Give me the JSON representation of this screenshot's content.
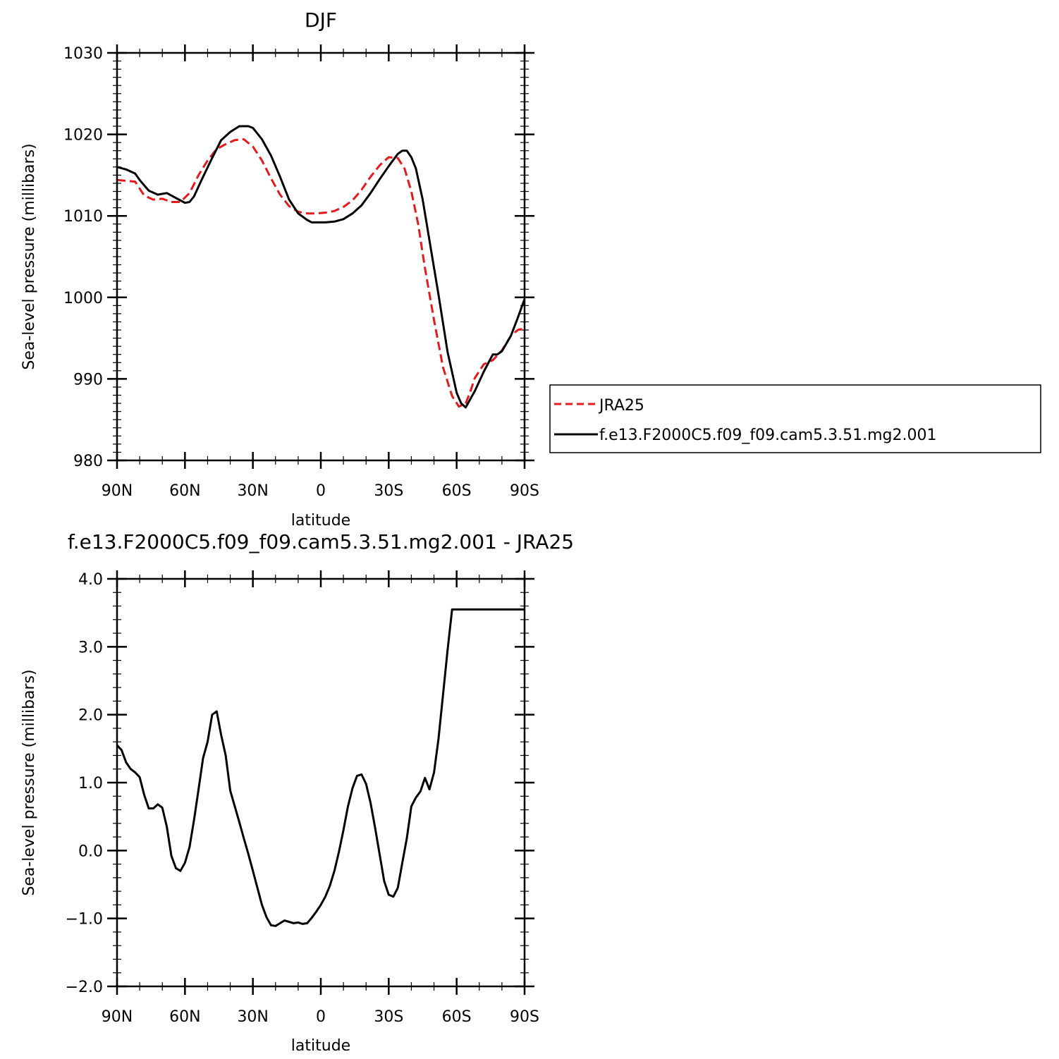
{
  "chart_data": [
    {
      "type": "line",
      "title": "DJF",
      "xlabel": "latitude",
      "ylabel": "Sea-level pressure (millibars)",
      "xlim": [
        -90,
        90
      ],
      "ylim": [
        980,
        1030
      ],
      "x_ticks": [
        {
          "value": -90,
          "label": "90N"
        },
        {
          "value": -60,
          "label": "60N"
        },
        {
          "value": -30,
          "label": "30N"
        },
        {
          "value": 0,
          "label": "0"
        },
        {
          "value": 30,
          "label": "30S"
        },
        {
          "value": 60,
          "label": "60S"
        },
        {
          "value": 90,
          "label": "90S"
        }
      ],
      "y_ticks": [
        {
          "value": 980,
          "label": "980"
        },
        {
          "value": 990,
          "label": "990"
        },
        {
          "value": 1000,
          "label": "1000"
        },
        {
          "value": 1010,
          "label": "1010"
        },
        {
          "value": 1020,
          "label": "1020"
        },
        {
          "value": 1030,
          "label": "1030"
        }
      ],
      "legend_position": "right",
      "series": [
        {
          "name": "JRA25",
          "color": "#e41a1c",
          "dash": "dashed",
          "x": [
            -90,
            -82,
            -78,
            -74,
            -70,
            -66,
            -62,
            -58,
            -54,
            -50,
            -46,
            -42,
            -38,
            -34,
            -30,
            -26,
            -22,
            -18,
            -14,
            -10,
            -6,
            -2,
            2,
            6,
            10,
            14,
            18,
            22,
            26,
            30,
            34,
            37,
            40,
            43,
            46,
            50,
            54,
            58,
            61,
            64,
            66,
            68,
            72,
            76,
            80,
            84,
            87,
            90
          ],
          "y": [
            1014.4,
            1014.2,
            1012.5,
            1012.0,
            1012.1,
            1011.7,
            1011.7,
            1012.8,
            1015.0,
            1016.8,
            1018.2,
            1018.8,
            1019.3,
            1019.4,
            1018.5,
            1016.8,
            1014.6,
            1012.6,
            1011.2,
            1010.5,
            1010.3,
            1010.3,
            1010.4,
            1010.6,
            1011.1,
            1011.9,
            1013.2,
            1014.8,
            1016.2,
            1017.2,
            1017.1,
            1015.8,
            1013.0,
            1009.0,
            1003.6,
            997.2,
            991.4,
            987.9,
            986.6,
            987.0,
            988.4,
            990.1,
            991.8,
            992.3,
            993.5,
            995.3,
            996.0,
            996.2
          ]
        },
        {
          "name": "f.e13.F2000C5.f09_f09.cam5.3.51.mg2.001",
          "color": "#000000",
          "dash": "solid",
          "x": [
            -90,
            -86,
            -82,
            -80,
            -76,
            -72,
            -68,
            -64,
            -60,
            -58,
            -56,
            -52,
            -48,
            -44,
            -40,
            -36,
            -34,
            -32,
            -30,
            -26,
            -22,
            -18,
            -14,
            -10,
            -6,
            -4,
            -2,
            2,
            6,
            10,
            14,
            18,
            22,
            26,
            30,
            34,
            36,
            38,
            40,
            42,
            45,
            48,
            52,
            56,
            60,
            62,
            64,
            66,
            68,
            72,
            76,
            78,
            80,
            84,
            87,
            90
          ],
          "y": [
            1016.0,
            1015.7,
            1015.2,
            1014.4,
            1013.1,
            1012.6,
            1012.8,
            1012.2,
            1011.6,
            1011.7,
            1012.4,
            1014.8,
            1017.1,
            1019.3,
            1020.3,
            1021.0,
            1021.0,
            1021.0,
            1020.8,
            1019.4,
            1017.4,
            1014.8,
            1012.0,
            1010.3,
            1009.5,
            1009.2,
            1009.2,
            1009.2,
            1009.3,
            1009.6,
            1010.3,
            1011.3,
            1012.8,
            1014.5,
            1016.1,
            1017.6,
            1018.0,
            1018.0,
            1017.2,
            1015.8,
            1012.0,
            1007.0,
            1000.3,
            993.3,
            988.3,
            987.0,
            986.5,
            987.5,
            988.5,
            990.9,
            993.0,
            993.0,
            993.4,
            995.3,
            997.5,
            999.8
          ]
        }
      ]
    },
    {
      "type": "line",
      "title": "f.e13.F2000C5.f09_f09.cam5.3.51.mg2.001  - JRA25",
      "xlabel": "latitude",
      "ylabel": "Sea-level pressure (millibars)",
      "xlim": [
        -90,
        90
      ],
      "ylim": [
        -2.0,
        4.0
      ],
      "x_ticks": [
        {
          "value": -90,
          "label": "90N"
        },
        {
          "value": -60,
          "label": "60N"
        },
        {
          "value": -30,
          "label": "30N"
        },
        {
          "value": 0,
          "label": "0"
        },
        {
          "value": 30,
          "label": "30S"
        },
        {
          "value": 60,
          "label": "60S"
        },
        {
          "value": 90,
          "label": "90S"
        }
      ],
      "y_ticks": [
        {
          "value": -2.0,
          "label": "−2.0"
        },
        {
          "value": -1.0,
          "label": "−1.0"
        },
        {
          "value": 0.0,
          "label": "0.0"
        },
        {
          "value": 1.0,
          "label": "1.0"
        },
        {
          "value": 2.0,
          "label": "2.0"
        },
        {
          "value": 3.0,
          "label": "3.0"
        },
        {
          "value": 4.0,
          "label": "4.0"
        }
      ],
      "series": [
        {
          "color": "#000000",
          "dash": "solid",
          "x": [
            -90,
            -88,
            -86,
            -84,
            -82,
            -80,
            -78,
            -76,
            -74,
            -72,
            -70,
            -68,
            -66,
            -64,
            -62,
            -60,
            -58,
            -56,
            -54,
            -52,
            -50,
            -48,
            -46,
            -44,
            -42,
            -40,
            -38,
            -36,
            -34,
            -32,
            -30,
            -28,
            -26,
            -24,
            -22,
            -20,
            -18,
            -16,
            -14,
            -12,
            -10,
            -8,
            -6,
            -4,
            -2,
            0,
            2,
            4,
            6,
            8,
            10,
            12,
            14,
            16,
            18,
            20,
            22,
            24,
            26,
            28,
            30,
            32,
            34,
            36,
            38,
            40,
            42,
            44,
            46,
            48,
            50,
            52,
            54,
            56,
            58,
            60,
            62,
            64,
            66,
            68,
            70,
            72,
            74,
            76,
            78,
            80,
            82,
            84,
            86,
            88,
            90
          ],
          "y": [
            1.55,
            1.48,
            1.3,
            1.2,
            1.15,
            1.08,
            0.82,
            0.62,
            0.62,
            0.68,
            0.63,
            0.35,
            -0.08,
            -0.26,
            -0.3,
            -0.18,
            0.05,
            0.45,
            0.9,
            1.36,
            1.6,
            2.0,
            2.05,
            1.7,
            1.4,
            0.88,
            0.65,
            0.42,
            0.18,
            -0.05,
            -0.3,
            -0.55,
            -0.8,
            -0.98,
            -1.1,
            -1.11,
            -1.07,
            -1.03,
            -1.05,
            -1.07,
            -1.06,
            -1.08,
            -1.07,
            -0.99,
            -0.9,
            -0.8,
            -0.68,
            -0.52,
            -0.3,
            -0.02,
            0.3,
            0.65,
            0.92,
            1.1,
            1.12,
            0.98,
            0.7,
            0.33,
            -0.06,
            -0.45,
            -0.65,
            -0.68,
            -0.55,
            -0.18,
            0.18,
            0.65,
            0.78,
            0.87,
            1.07,
            0.9,
            1.15,
            1.65,
            2.3,
            2.95,
            3.55,
            3.55,
            3.55,
            3.55,
            3.55,
            3.55,
            3.55,
            3.55,
            3.55,
            3.55,
            3.55,
            3.55,
            3.55,
            3.55,
            3.55,
            3.55,
            3.55
          ]
        }
      ]
    }
  ]
}
